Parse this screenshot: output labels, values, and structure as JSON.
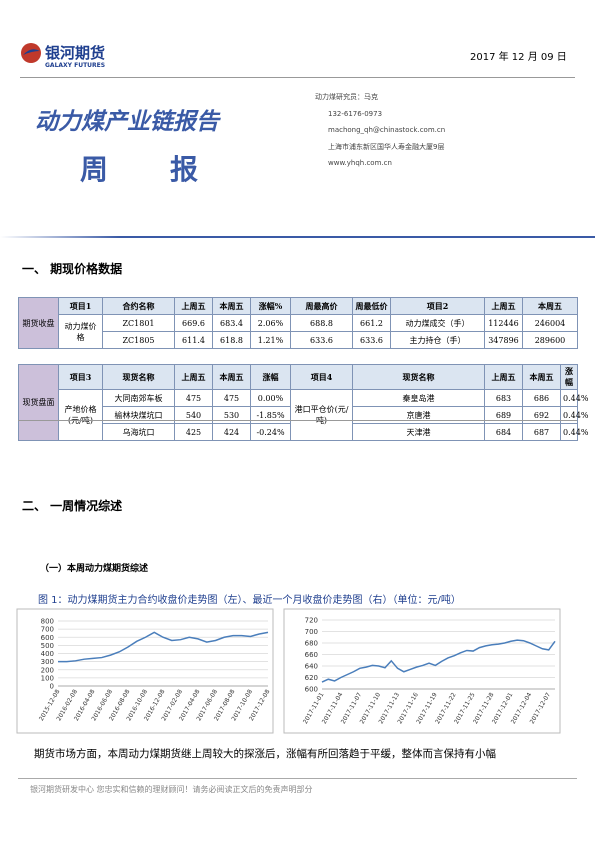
{
  "header": {
    "logo": "银河期货",
    "logo_en": "GALAXY FUTURES",
    "date": "2017 年 12 月 09 日",
    "title": "动力煤产业链报告",
    "subtitle_1": "周",
    "subtitle_2": "报",
    "contacts": [
      "动力煤研究员：马克",
      "132-6176-0973",
      "machong_qh@chinastock.com.cn",
      "上海市浦东新区国华人寿金融大厦9层",
      "www.yhqh.com.cn"
    ]
  },
  "section_1": "一、 期现价格数据",
  "futures_table": {
    "rows": [
      [
        "期货收盘",
        "项目1",
        "合约名称",
        "上周五",
        "本周五",
        "涨幅%",
        "周最高价",
        "周最低价",
        "项目2",
        "上周五",
        "本周五"
      ],
      [
        "动力煤价格",
        "ZC1801",
        "669.6",
        "683.4",
        "2.06%",
        "688.8",
        "661.2",
        "动力煤成交（手）",
        "112446",
        "246004"
      ],
      [
        "ZC1805",
        "611.4",
        "618.8",
        "1.21%",
        "633.6",
        "633.6",
        "主力持仓（手）",
        "347896",
        "289600"
      ]
    ]
  },
  "spot_table": {
    "rows": [
      [
        "现货盘面",
        "项目3",
        "现货名称",
        "上周五",
        "本周五",
        "涨幅",
        "项目4",
        "现货名称",
        "上周五",
        "本周五",
        "涨幅"
      ],
      [
        "产地价格(元/吨)",
        "大同南郊车板",
        "475",
        "475",
        "0.00%",
        "港口平仓价(元/吨)",
        "秦皇岛港",
        "683",
        "686",
        "0.44%"
      ],
      [
        "榆林块煤坑口",
        "540",
        "530",
        "-1.85%",
        "京唐港",
        "689",
        "692",
        "0.44%"
      ],
      [
        "乌海坑口",
        "425",
        "424",
        "-0.24%",
        "天津港",
        "684",
        "687",
        "0.44%"
      ]
    ]
  },
  "section_2": "二、 一周情况综述",
  "subsection_1": "（一）本周动力煤期货综述",
  "figure_caption": "图 1：动力煤期货主力合约收盘价走势图（左）、最近一个月收盘价走势图（右）（单位：元/吨）",
  "chart_data": [
    {
      "type": "line",
      "categories": [
        "2015-12-08",
        null,
        "2016-02-08",
        null,
        "2016-04-08",
        null,
        "2016-06-08",
        null,
        "2016-08-08",
        null,
        "2016-10-08",
        null,
        "2016-12-08",
        null,
        "2017-02-08",
        null,
        "2017-04-08",
        null,
        "2017-06-08",
        null,
        "2017-08-08",
        null,
        "2017-10-08",
        null,
        "2017-12-08"
      ],
      "values": [
        300,
        300,
        310,
        330,
        340,
        350,
        380,
        420,
        480,
        550,
        600,
        660,
        600,
        560,
        570,
        600,
        580,
        540,
        560,
        600,
        620,
        620,
        610,
        640,
        660
      ],
      "color": "#4a7ebb",
      "ylim": [
        0,
        800
      ],
      "yticks": [
        0,
        100,
        200,
        300,
        400,
        500,
        600,
        700,
        800
      ],
      "grid": true
    },
    {
      "type": "line",
      "categories": [
        "2017-11-01",
        null,
        null,
        "2017-11-04",
        null,
        null,
        "2017-11-07",
        null,
        null,
        "2017-11-10",
        null,
        null,
        "2017-11-13",
        null,
        null,
        "2017-11-16",
        null,
        null,
        "2017-11-19",
        null,
        null,
        "2017-11-22",
        null,
        null,
        "2017-11-25",
        null,
        null,
        "2017-11-28",
        null,
        null,
        "2017-12-01",
        null,
        null,
        "2017-12-04",
        null,
        null,
        "2017-12-07",
        null
      ],
      "values": [
        612,
        617,
        614,
        620,
        625,
        630,
        636,
        638,
        641,
        640,
        637,
        649,
        636,
        630,
        634,
        638,
        641,
        645,
        641,
        648,
        654,
        658,
        663,
        667,
        666,
        672,
        675,
        677,
        678,
        680,
        683,
        685,
        684,
        680,
        675,
        670,
        668,
        683
      ],
      "color": "#4a7ebb",
      "ylim": [
        600,
        720
      ],
      "yticks": [
        600,
        620,
        640,
        660,
        680,
        700,
        720
      ],
      "grid": true
    }
  ],
  "paragraph": "期货市场方面，本周动力煤期货继上周较大的探涨后，涨幅有所回落趋于平缓，整体而言保持有小幅",
  "footer": "银河期货研发中心 您忠实和信赖的理财顾问！请务必阅读正文后的免责声明部分"
}
